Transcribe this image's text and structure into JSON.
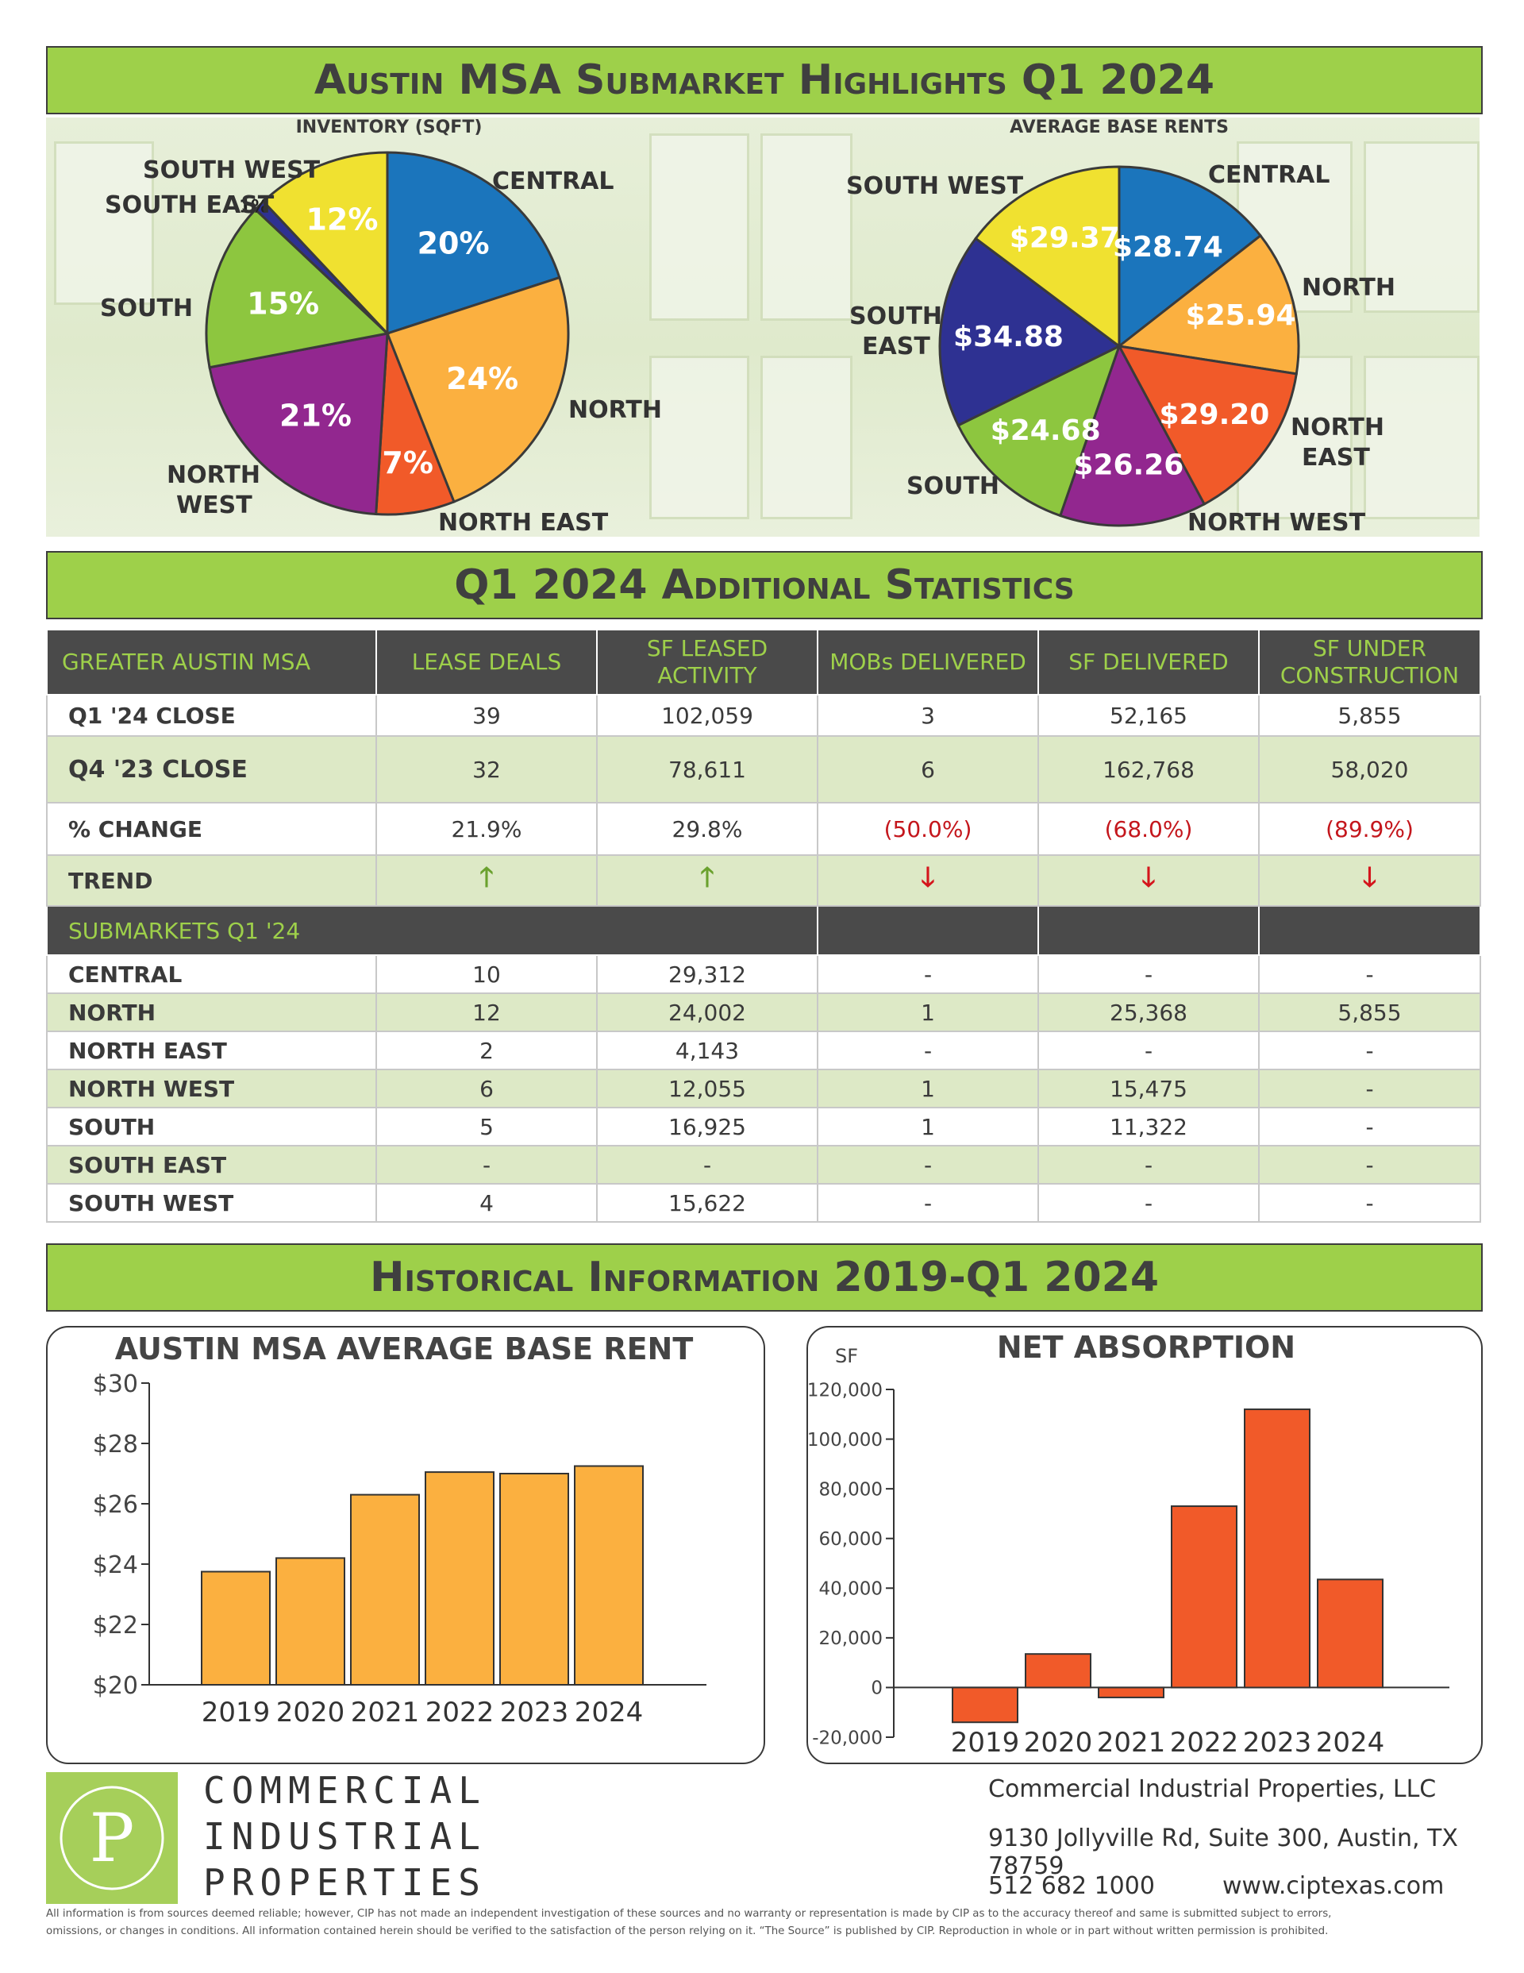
{
  "banners": {
    "top": "Austin MSA Submarket Highlights Q1 2024",
    "middle": "Q1 2024 Additional Statistics",
    "bottom": "Historical Information 2019-Q1 2024"
  },
  "inventory_pie": {
    "title": "INVENTORY (SQFT)",
    "slices": [
      {
        "label": "CENTRAL",
        "value": 20,
        "display": "20%",
        "color": "#1b75bc"
      },
      {
        "label": "NORTH",
        "value": 24,
        "display": "24%",
        "color": "#fbb040"
      },
      {
        "label": "NORTH EAST",
        "value": 7,
        "display": "7%",
        "color": "#f15a29"
      },
      {
        "label": "NORTH WEST",
        "value": 21,
        "display": "21%",
        "color": "#92278f"
      },
      {
        "label": "SOUTH",
        "value": 15,
        "display": "15%",
        "color": "#8dc63f"
      },
      {
        "label": "SOUTH EAST",
        "value": 1,
        "display": "1%",
        "color": "#2e3192"
      },
      {
        "label": "SOUTH WEST",
        "value": 12,
        "display": "12%",
        "color": "#f0e130"
      }
    ],
    "label_lines": {
      "north_west": [
        "NORTH",
        "WEST"
      ]
    }
  },
  "rents_pie": {
    "title": "AVERAGE BASE RENTS",
    "slices": [
      {
        "label": "CENTRAL",
        "value": 28.74,
        "display": "$28.74",
        "color": "#1b75bc"
      },
      {
        "label": "NORTH",
        "value": 25.94,
        "display": "$25.94",
        "color": "#fbb040"
      },
      {
        "label": "NORTH EAST",
        "value": 29.2,
        "display": "$29.20",
        "color": "#f15a29"
      },
      {
        "label": "NORTH WEST",
        "value": 26.26,
        "display": "$26.26",
        "color": "#92278f"
      },
      {
        "label": "SOUTH",
        "value": 24.68,
        "display": "$24.68",
        "color": "#8dc63f"
      },
      {
        "label": "SOUTH EAST",
        "value": 34.88,
        "display": "$34.88",
        "color": "#2e3192"
      },
      {
        "label": "SOUTH WEST",
        "value": 29.37,
        "display": "$29.37",
        "color": "#f0e130"
      }
    ],
    "label_lines": {
      "north_east": [
        "NORTH",
        "EAST"
      ],
      "south_east": [
        "SOUTH",
        "EAST"
      ]
    }
  },
  "stats": {
    "headers": [
      "GREATER AUSTIN MSA",
      "LEASE DEALS",
      "SF LEASED ACTIVITY",
      "MOBs DELIVERED",
      "SF DELIVERED",
      "SF UNDER CONSTRUCTION"
    ],
    "rows": [
      {
        "label": "Q1 '24 CLOSE",
        "values": [
          "39",
          "102,059",
          "3",
          "52,165",
          "5,855"
        ]
      },
      {
        "label": "Q4 '23 CLOSE",
        "values": [
          "32",
          "78,611",
          "6",
          "162,768",
          "58,020"
        ]
      },
      {
        "label": "% CHANGE",
        "values": [
          "21.9%",
          "29.8%",
          "(50.0%)",
          "(68.0%)",
          "(89.9%)"
        ]
      }
    ],
    "trend_label": "TREND",
    "trend": [
      "up",
      "up",
      "down",
      "down",
      "down"
    ],
    "submarkets_header": "SUBMARKETS Q1 '24",
    "submarkets": [
      {
        "label": "CENTRAL",
        "values": [
          "10",
          "29,312",
          "-",
          "-",
          "-"
        ]
      },
      {
        "label": "NORTH",
        "values": [
          "12",
          "24,002",
          "1",
          "25,368",
          "5,855"
        ]
      },
      {
        "label": "NORTH EAST",
        "values": [
          "2",
          "4,143",
          "-",
          "-",
          "-"
        ]
      },
      {
        "label": "NORTH WEST",
        "values": [
          "6",
          "12,055",
          "1",
          "15,475",
          "-"
        ]
      },
      {
        "label": "SOUTH",
        "values": [
          "5",
          "16,925",
          "1",
          "11,322",
          "-"
        ]
      },
      {
        "label": "SOUTH EAST",
        "values": [
          "-",
          "-",
          "-",
          "-",
          "-"
        ]
      },
      {
        "label": "SOUTH WEST",
        "values": [
          "4",
          "15,622",
          "-",
          "-",
          "-"
        ]
      }
    ]
  },
  "chart_data": [
    {
      "type": "bar",
      "title": "AUSTIN MSA AVERAGE BASE RENT",
      "categories": [
        "2019",
        "2020",
        "2021",
        "2022",
        "2023",
        "2024"
      ],
      "values": [
        23.75,
        24.2,
        26.3,
        27.05,
        27.0,
        27.25
      ],
      "ylim": [
        20,
        30
      ],
      "yticks": [
        "$20",
        "$22",
        "$24",
        "$26",
        "$28",
        "$30"
      ],
      "color": "#fbb040"
    },
    {
      "type": "bar",
      "title": "NET ABSORPTION",
      "ylabel": "SF",
      "categories": [
        "2019",
        "2020",
        "2021",
        "2022",
        "2023",
        "2024"
      ],
      "values": [
        -14000,
        13500,
        -4000,
        73000,
        112000,
        43500
      ],
      "ylim": [
        -20000,
        120000
      ],
      "yticks": [
        "-20,000",
        "0",
        "20,000",
        "40,000",
        "60,000",
        "80,000",
        "100,000",
        "120,000"
      ],
      "color": "#f15a29"
    }
  ],
  "footer": {
    "logo_letter": "P",
    "brand_lines": [
      "COMMERCIAL",
      "INDUSTRIAL",
      "PROPERTIES"
    ],
    "company": "Commercial Industrial Properties, LLC",
    "address": "9130 Jollyville Rd, Suite 300, Austin, TX 78759",
    "phone": "512 682 1000",
    "website": "www.ciptexas.com",
    "disclaimer_1": "All information is from sources deemed reliable; however, CIP has not made an independent investigation of these sources and no warranty or representation is made by CIP as to the accuracy thereof and same is submitted subject to errors,",
    "disclaimer_2": "omissions, or changes in conditions. All information contained herein should be verified to the satisfaction of the person relying on it. “The Source” is published by CIP. Reproduction in whole or in part without written permission is prohibited."
  }
}
